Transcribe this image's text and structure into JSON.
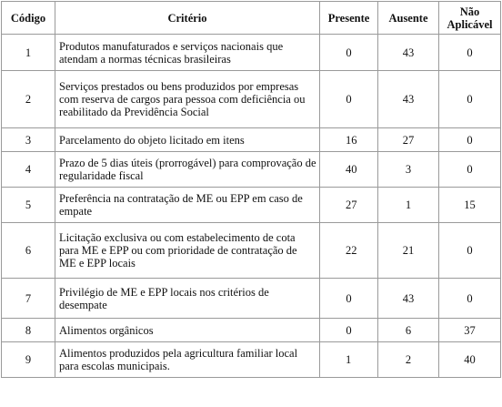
{
  "headers": {
    "codigo": "Código",
    "criterio": "Critério",
    "presente": "Presente",
    "ausente": "Ausente",
    "nao_aplicavel": "Não Aplicável"
  },
  "rows": [
    {
      "codigo": "1",
      "criterio": "Produtos manufaturados e serviços nacionais que atendam a normas técnicas brasileiras",
      "presente": "0",
      "ausente": "43",
      "nao_aplicavel": "0"
    },
    {
      "codigo": "2",
      "criterio": "Serviços prestados ou bens produzidos por empresas com reserva de cargos para pessoa com deficiência ou reabilitado da Previdência Social",
      "presente": "0",
      "ausente": "43",
      "nao_aplicavel": "0"
    },
    {
      "codigo": "3",
      "criterio": "Parcelamento do objeto licitado em itens",
      "presente": "16",
      "ausente": "27",
      "nao_aplicavel": "0"
    },
    {
      "codigo": "4",
      "criterio": "Prazo de 5 dias úteis (prorrogável) para comprovação de regularidade fiscal",
      "presente": "40",
      "ausente": "3",
      "nao_aplicavel": "0"
    },
    {
      "codigo": "5",
      "criterio": "Preferência na contratação de ME ou EPP em caso de empate",
      "presente": "27",
      "ausente": "1",
      "nao_aplicavel": "15"
    },
    {
      "codigo": "6",
      "criterio": "Licitação exclusiva ou com estabelecimento de cota para ME e EPP ou com prioridade de contratação de ME e EPP locais",
      "presente": "22",
      "ausente": "21",
      "nao_aplicavel": "0"
    },
    {
      "codigo": "7",
      "criterio": "Privilégio de ME e EPP locais nos critérios de desempate",
      "presente": "0",
      "ausente": "43",
      "nao_aplicavel": "0"
    },
    {
      "codigo": "8",
      "criterio": "Alimentos orgânicos",
      "presente": "0",
      "ausente": "6",
      "nao_aplicavel": "37"
    },
    {
      "codigo": "9",
      "criterio": "Alimentos produzidos pela agricultura familiar local para escolas municipais.",
      "presente": "1",
      "ausente": "2",
      "nao_aplicavel": "40"
    }
  ]
}
